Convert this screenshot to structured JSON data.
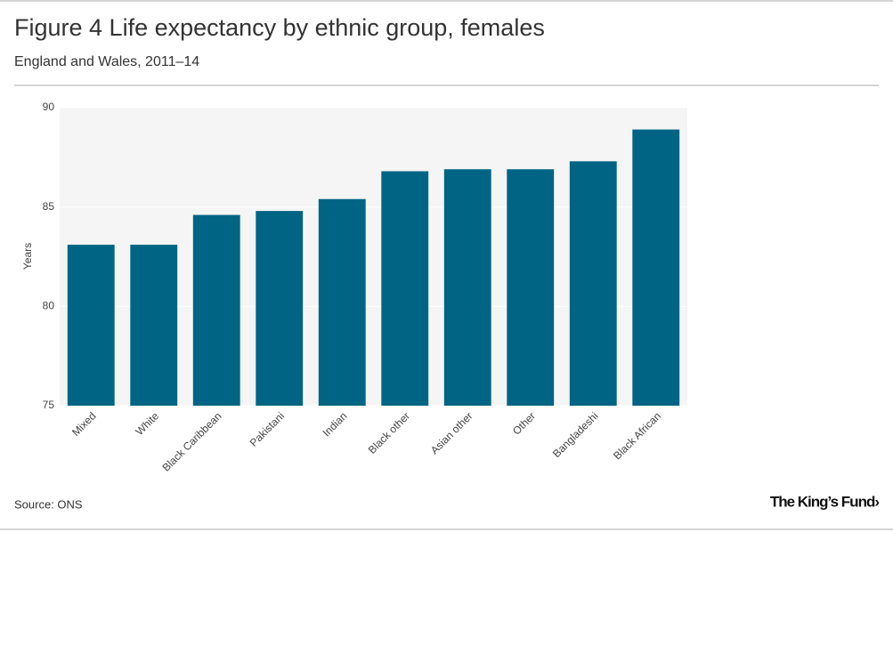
{
  "chart_data": {
    "type": "bar",
    "title": "Figure 4 Life expectancy by ethnic group, females",
    "subtitle": "England and Wales, 2011–14",
    "y_label": "Years",
    "categories": [
      "Mixed",
      "White",
      "Black Caribbean",
      "Pakistani",
      "Indian",
      "Black other",
      "Asian other",
      "Other",
      "Bangladeshi",
      "Black African"
    ],
    "values": [
      83.1,
      83.1,
      84.6,
      84.8,
      85.4,
      86.8,
      86.9,
      86.9,
      87.3,
      88.9
    ],
    "color": "#006584",
    "ylim": [
      75,
      90
    ],
    "yticks": [
      75,
      80,
      85,
      90
    ],
    "grid": true,
    "source": "Source: ONS",
    "logo": "The King’s Fund›"
  }
}
